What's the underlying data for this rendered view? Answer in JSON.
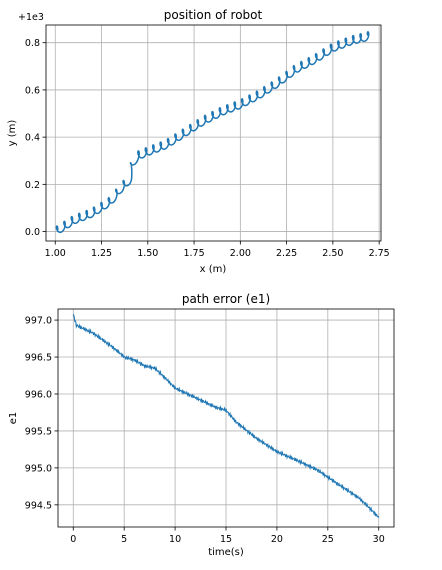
{
  "chart_data": [
    {
      "type": "line",
      "title": "position of robot",
      "xlabel": "x (m)",
      "ylabel": "y (m)",
      "offset_text": "+1e3",
      "xlim": [
        0.95,
        2.76
      ],
      "ylim": [
        -0.04,
        0.875
      ],
      "xticks": [
        "1.00",
        "1.25",
        "1.50",
        "1.75",
        "2.00",
        "2.25",
        "2.50",
        "2.75"
      ],
      "xtick_values": [
        1.0,
        1.25,
        1.5,
        1.75,
        2.0,
        2.25,
        2.5,
        2.75
      ],
      "yticks": [
        "0.0",
        "0.2",
        "0.4",
        "0.6",
        "0.8"
      ],
      "ytick_values": [
        0.0,
        0.2,
        0.4,
        0.6,
        0.8
      ],
      "grid": true,
      "series": [
        {
          "color": "#1f77b4",
          "x": [
            1.0,
            1.1,
            1.2,
            1.3,
            1.36,
            1.4,
            1.41,
            1.44,
            1.5,
            1.6,
            1.7,
            1.8,
            1.9,
            2.0,
            2.1,
            2.2,
            2.3,
            2.4,
            2.5,
            2.6,
            2.7
          ],
          "y": [
            0.0,
            0.05,
            0.08,
            0.13,
            0.19,
            0.22,
            0.27,
            0.32,
            0.34,
            0.37,
            0.42,
            0.47,
            0.51,
            0.54,
            0.58,
            0.63,
            0.69,
            0.73,
            0.78,
            0.81,
            0.83
          ],
          "oscillation_amplitude": 0.018,
          "oscillation_period": 0.04
        }
      ]
    },
    {
      "type": "line",
      "title": "path error (e1)",
      "xlabel": "time(s)",
      "ylabel": "e1",
      "xlim": [
        -1.5,
        31.5
      ],
      "ylim": [
        994.2,
        997.15
      ],
      "xticks": [
        "0",
        "5",
        "10",
        "15",
        "20",
        "25",
        "30"
      ],
      "xtick_values": [
        0,
        5,
        10,
        15,
        20,
        25,
        30
      ],
      "yticks": [
        "994.5",
        "995.0",
        "995.5",
        "996.0",
        "996.5",
        "997.0"
      ],
      "ytick_values": [
        994.5,
        995.0,
        995.5,
        996.0,
        996.5,
        997.0
      ],
      "grid": true,
      "series": [
        {
          "color": "#1f77b4",
          "x": [
            0,
            0.3,
            2,
            4,
            5,
            6,
            7,
            8,
            9,
            10,
            12,
            14,
            15,
            16,
            18,
            20,
            22,
            24,
            26,
            28,
            29,
            30
          ],
          "y": [
            997.08,
            996.93,
            996.82,
            996.62,
            996.5,
            996.46,
            996.38,
            996.35,
            996.22,
            996.08,
            995.95,
            995.82,
            995.78,
            995.62,
            995.4,
            995.22,
            995.1,
            994.97,
            994.78,
            994.6,
            994.47,
            994.33
          ],
          "noise_amplitude": 0.025
        }
      ]
    }
  ]
}
